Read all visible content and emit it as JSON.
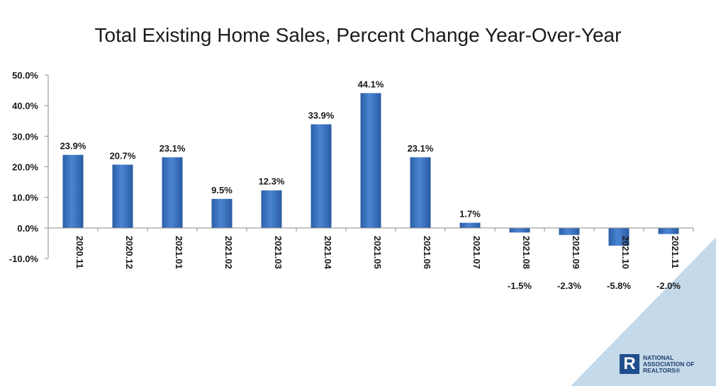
{
  "chart_data": {
    "type": "bar",
    "title": "Total Existing Home Sales, Percent Change Year-Over-Year",
    "categories": [
      "2020.11",
      "2020.12",
      "2021.01",
      "2021.02",
      "2021.03",
      "2021.04",
      "2021.05",
      "2021.06",
      "2021.07",
      "2021.08",
      "2021.09",
      "2021.10",
      "2021.11"
    ],
    "values": [
      23.9,
      20.7,
      23.1,
      9.5,
      12.3,
      33.9,
      44.1,
      23.1,
      1.7,
      -1.5,
      -2.3,
      -5.8,
      -2.0
    ],
    "value_labels": [
      "23.9%",
      "20.7%",
      "23.1%",
      "9.5%",
      "12.3%",
      "33.9%",
      "44.1%",
      "23.1%",
      "1.7%",
      "-1.5%",
      "-2.3%",
      "-5.8%",
      "-2.0%"
    ],
    "y_ticks": [
      50,
      40,
      30,
      20,
      10,
      0,
      -10
    ],
    "y_tick_labels": [
      "50.0%",
      "40.0%",
      "30.0%",
      "20.0%",
      "10.0%",
      "0.0%",
      "-10.0%"
    ],
    "ylim": [
      -10,
      50
    ],
    "grid": false,
    "xlabel": "",
    "ylabel": "",
    "bar_color": "#3a74c4"
  },
  "logo": {
    "mark": "R",
    "line1": "NATIONAL",
    "line2": "ASSOCIATION OF",
    "line3": "REALTORS®"
  },
  "colors": {
    "corner_fill": "#c4d9e9"
  }
}
